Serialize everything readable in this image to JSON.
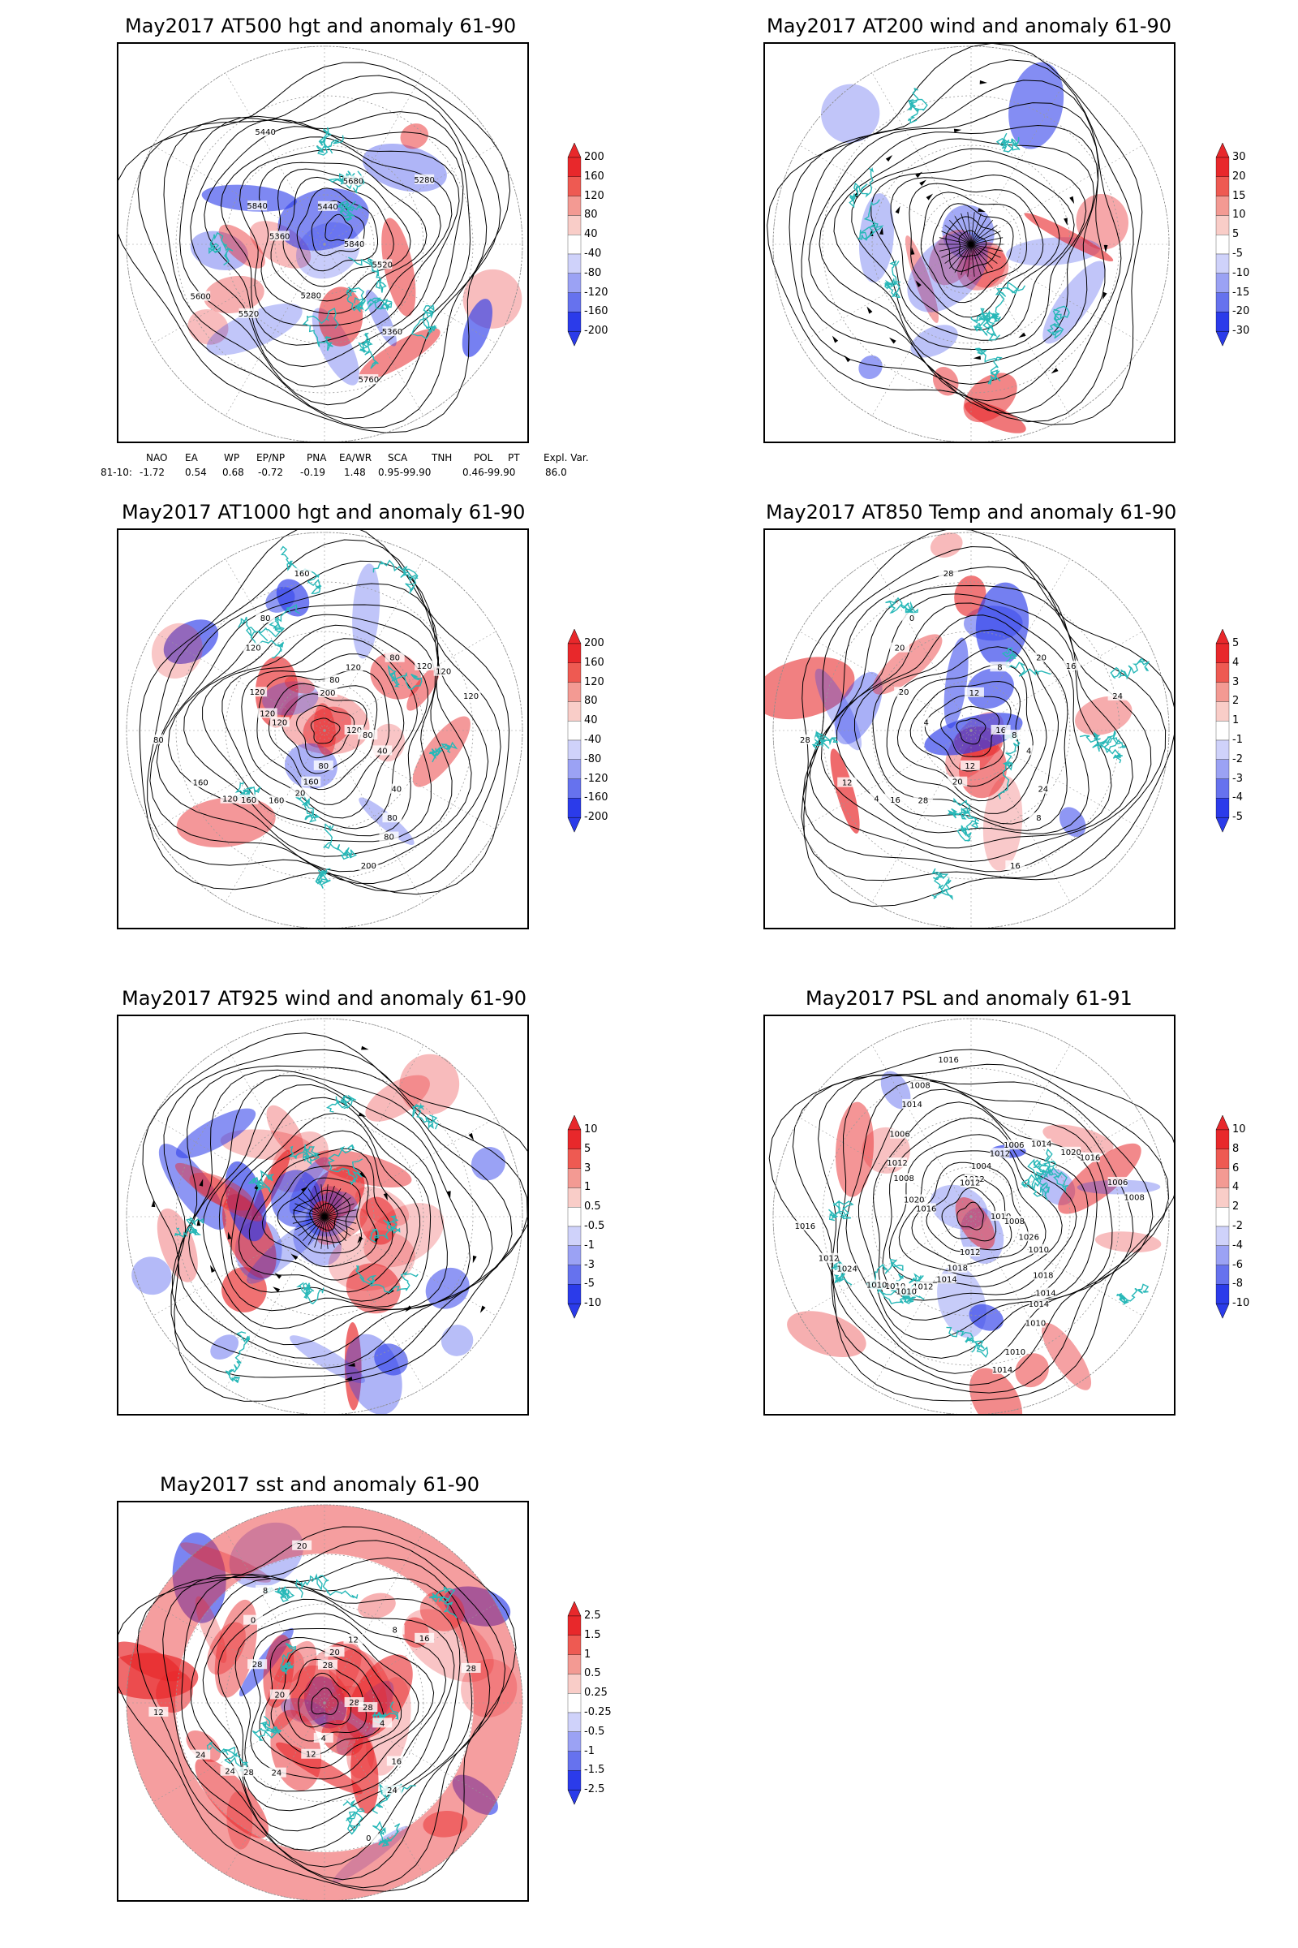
{
  "panels": [
    {
      "key": "p1",
      "title": "May2017 AT500 hgt and anomaly 61-90",
      "colorbar": [
        "200",
        "160",
        "120",
        "80",
        "40",
        "-40",
        "-80",
        "-120",
        "-160",
        "-200"
      ],
      "contours": [
        "5840",
        "5520",
        "5440",
        "5360",
        "5360",
        "5280",
        "5280",
        "5440",
        "5520",
        "5600",
        "5680",
        "5760",
        "5840"
      ]
    },
    {
      "key": "p2",
      "title": "May2017 AT200 wind and anomaly 61-90",
      "colorbar": [
        "30",
        "20",
        "15",
        "10",
        "5",
        "-5",
        "-10",
        "-15",
        "-20",
        "-30"
      ],
      "contours": []
    },
    {
      "key": "p3",
      "title": "May2017 AT1000 hgt and anomaly 61-90",
      "colorbar": [
        "200",
        "160",
        "120",
        "80",
        "40",
        "-40",
        "-80",
        "-120",
        "-160",
        "-200"
      ],
      "contours": [
        "120",
        "160",
        "200",
        "80",
        "120",
        "120",
        "160",
        "80",
        "40",
        "160",
        "120",
        "200",
        "120",
        "120",
        "160",
        "160",
        "40",
        "80",
        "80",
        "80",
        "120",
        "80",
        "120",
        "80",
        "80",
        "120",
        "120",
        "20"
      ]
    },
    {
      "key": "p4",
      "title": "May2017 AT850 Temp and anomaly 61-90",
      "colorbar": [
        "5",
        "4",
        "3",
        "2",
        "1",
        "-1",
        "-2",
        "-3",
        "-4",
        "-5"
      ],
      "contours": [
        "16",
        "16",
        "12",
        "8",
        "4",
        "16",
        "20",
        "0",
        "4",
        "12",
        "8",
        "16",
        "20",
        "24",
        "28",
        "28",
        "24",
        "28",
        "20",
        "12",
        "20",
        "8",
        "4"
      ]
    },
    {
      "key": "p5",
      "title": "May2017 AT925 wind and anomaly 61-90",
      "colorbar": [
        "10",
        "5",
        "3",
        "1",
        "0.5",
        "-0.5",
        "-1",
        "-3",
        "-5",
        "-10"
      ],
      "contours": []
    },
    {
      "key": "p6",
      "title": "May2017 PSL and anomaly 61-91",
      "colorbar": [
        "10",
        "8",
        "6",
        "4",
        "2",
        "-2",
        "-4",
        "-6",
        "-8",
        "-10"
      ],
      "contours": [
        "1010",
        "1010",
        "1012",
        "1014",
        "1016",
        "1020",
        "1018",
        "1014",
        "1026",
        "1024",
        "1012",
        "1010",
        "1008",
        "1006",
        "1012",
        "1016",
        "1018",
        "1016",
        "1014",
        "1012",
        "1006",
        "1008",
        "1010",
        "1004",
        "1010",
        "1020",
        "1016",
        "1014",
        "1008",
        "1010",
        "1012",
        "1006",
        "1014",
        "1012",
        "1008",
        "1010",
        "1012",
        "1014"
      ]
    },
    {
      "key": "p7",
      "title": "May2017 sst and anomaly 61-90",
      "colorbar": [
        "2.5",
        "1.5",
        "1",
        "0.5",
        "0.25",
        "-0.25",
        "-0.5",
        "-1",
        "-1.5",
        "-2.5"
      ],
      "contours": [
        "28",
        "28",
        "28",
        "24",
        "20",
        "16",
        "12",
        "8",
        "4",
        "24",
        "12",
        "0",
        "28",
        "28",
        "24",
        "20",
        "16",
        "12",
        "8",
        "4",
        "0",
        "28",
        "24",
        "20"
      ]
    }
  ],
  "indices": {
    "headers": [
      "NAO",
      "EA",
      "WP",
      "EP/NP",
      "PNA",
      "EA/WR",
      "SCA",
      "TNH",
      "POL",
      "PT",
      "Expl. Var."
    ],
    "row_label": "81-10:",
    "values": [
      "-1.72",
      "0.54",
      "0.68",
      "-0.72",
      "-0.19",
      "1.48",
      "0.95-99.90",
      "0.46-99.90",
      "86.0"
    ]
  },
  "colors": {
    "coast": "#28b8b8",
    "contour": "#000000",
    "warm": "#e8282b",
    "cold": "#2b3bea",
    "grid": "#999999"
  }
}
